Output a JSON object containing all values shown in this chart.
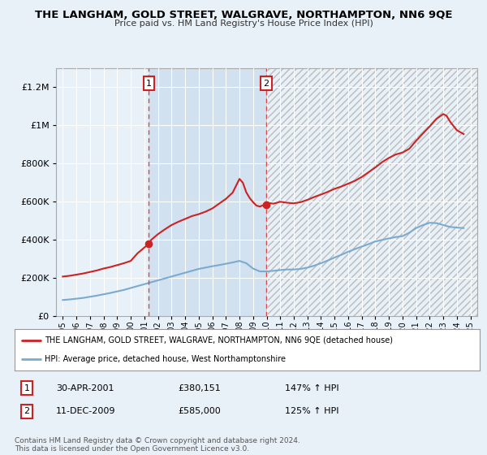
{
  "title": "THE LANGHAM, GOLD STREET, WALGRAVE, NORTHAMPTON, NN6 9QE",
  "subtitle": "Price paid vs. HM Land Registry's House Price Index (HPI)",
  "background_color": "#e8f0f8",
  "plot_background": "#e8f0f8",
  "shade_color": "#ccddf0",
  "hatch_color": "#cccccc",
  "ylim": [
    0,
    1300000
  ],
  "yticks": [
    0,
    200000,
    400000,
    600000,
    800000,
    1000000,
    1200000
  ],
  "ytick_labels": [
    "£0",
    "£200K",
    "£400K",
    "£600K",
    "£800K",
    "£1M",
    "£1.2M"
  ],
  "x_start_year": 1995,
  "x_end_year": 2025,
  "sale1_year": 2001.33,
  "sale1_price": 380151,
  "sale1_date": "30-APR-2001",
  "sale1_hpi_pct": "147% ↑ HPI",
  "sale2_year": 2009.95,
  "sale2_price": 585000,
  "sale2_date": "11-DEC-2009",
  "sale2_hpi_pct": "125% ↑ HPI",
  "red_line_color": "#cc2222",
  "blue_line_color": "#7aabcf",
  "dashed_line_color": "#dd4444",
  "marker_color": "#cc2222",
  "legend1_text": "THE LANGHAM, GOLD STREET, WALGRAVE, NORTHAMPTON, NN6 9QE (detached house)",
  "legend2_text": "HPI: Average price, detached house, West Northamptonshire",
  "footer_text": "Contains HM Land Registry data © Crown copyright and database right 2024.\nThis data is licensed under the Open Government Licence v3.0.",
  "red_years": [
    1995.0,
    1995.5,
    1996.0,
    1996.5,
    1997.0,
    1997.5,
    1998.0,
    1998.5,
    1999.0,
    1999.5,
    2000.0,
    2000.5,
    2001.0,
    2001.33,
    2001.5,
    2002.0,
    2002.5,
    2003.0,
    2003.5,
    2004.0,
    2004.5,
    2005.0,
    2005.5,
    2006.0,
    2006.5,
    2007.0,
    2007.5,
    2008.0,
    2008.25,
    2008.5,
    2008.75,
    2009.0,
    2009.25,
    2009.5,
    2009.75,
    2009.95,
    2010.0,
    2010.5,
    2011.0,
    2011.5,
    2012.0,
    2012.5,
    2013.0,
    2013.5,
    2014.0,
    2014.5,
    2015.0,
    2015.5,
    2016.0,
    2016.5,
    2017.0,
    2017.5,
    2018.0,
    2018.5,
    2019.0,
    2019.5,
    2020.0,
    2020.5,
    2021.0,
    2021.5,
    2022.0,
    2022.5,
    2023.0,
    2023.25,
    2023.5,
    2024.0,
    2024.5
  ],
  "red_values": [
    208000,
    212000,
    218000,
    224000,
    232000,
    240000,
    250000,
    258000,
    268000,
    278000,
    290000,
    330000,
    360000,
    380151,
    400000,
    430000,
    455000,
    478000,
    495000,
    510000,
    525000,
    535000,
    548000,
    565000,
    590000,
    615000,
    648000,
    720000,
    700000,
    650000,
    620000,
    598000,
    580000,
    575000,
    582000,
    585000,
    595000,
    590000,
    600000,
    595000,
    592000,
    598000,
    610000,
    625000,
    638000,
    652000,
    668000,
    680000,
    695000,
    710000,
    730000,
    755000,
    780000,
    808000,
    830000,
    848000,
    858000,
    878000,
    920000,
    958000,
    995000,
    1035000,
    1060000,
    1050000,
    1020000,
    975000,
    955000
  ],
  "blue_years": [
    1995.0,
    1995.5,
    1996.0,
    1996.5,
    1997.0,
    1997.5,
    1998.0,
    1998.5,
    1999.0,
    1999.5,
    2000.0,
    2000.5,
    2001.0,
    2001.5,
    2002.0,
    2002.5,
    2003.0,
    2003.5,
    2004.0,
    2004.5,
    2005.0,
    2005.5,
    2006.0,
    2006.5,
    2007.0,
    2007.5,
    2008.0,
    2008.5,
    2009.0,
    2009.5,
    2010.0,
    2010.5,
    2011.0,
    2011.5,
    2012.0,
    2012.5,
    2013.0,
    2013.5,
    2014.0,
    2014.5,
    2015.0,
    2015.5,
    2016.0,
    2016.5,
    2017.0,
    2017.5,
    2018.0,
    2018.5,
    2019.0,
    2019.5,
    2020.0,
    2020.5,
    2021.0,
    2021.5,
    2022.0,
    2022.5,
    2023.0,
    2023.5,
    2024.0,
    2024.5
  ],
  "blue_values": [
    85000,
    88000,
    92000,
    96000,
    102000,
    108000,
    115000,
    122000,
    130000,
    138000,
    148000,
    158000,
    168000,
    178000,
    188000,
    198000,
    208000,
    218000,
    228000,
    238000,
    248000,
    255000,
    262000,
    268000,
    275000,
    282000,
    290000,
    278000,
    250000,
    235000,
    235000,
    238000,
    242000,
    245000,
    245000,
    248000,
    255000,
    265000,
    278000,
    292000,
    308000,
    322000,
    338000,
    352000,
    365000,
    378000,
    392000,
    400000,
    408000,
    415000,
    420000,
    438000,
    462000,
    478000,
    490000,
    488000,
    478000,
    468000,
    465000,
    462000
  ]
}
